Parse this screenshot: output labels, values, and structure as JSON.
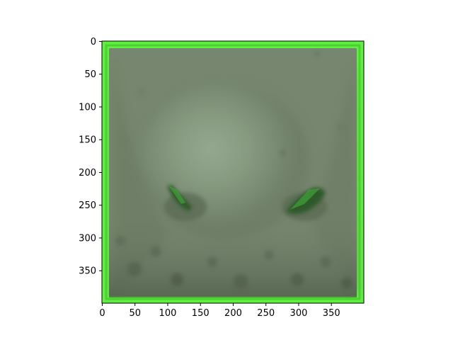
{
  "image": {
    "description_for_axes": "Displayed image with pixel-index axes",
    "x_axis": {
      "ticks": [
        0,
        50,
        100,
        150,
        200,
        250,
        300,
        350
      ],
      "range": [
        0,
        400
      ]
    },
    "y_axis": {
      "ticks": [
        0,
        50,
        100,
        150,
        200,
        250,
        300,
        350
      ],
      "range": [
        0,
        400
      ],
      "inverted": true
    },
    "frame_color": "#5ff040",
    "background_color": "#ffffff",
    "image_tone_color": "#7f9077"
  }
}
